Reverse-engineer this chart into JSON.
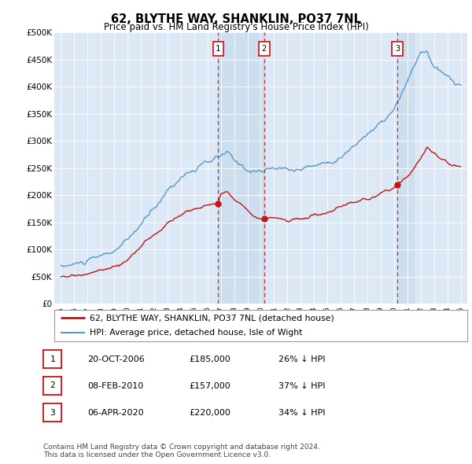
{
  "title": "62, BLYTHE WAY, SHANKLIN, PO37 7NL",
  "subtitle": "Price paid vs. HM Land Registry's House Price Index (HPI)",
  "ylabel_ticks": [
    "£0",
    "£50K",
    "£100K",
    "£150K",
    "£200K",
    "£250K",
    "£300K",
    "£350K",
    "£400K",
    "£450K",
    "£500K"
  ],
  "ytick_values": [
    0,
    50000,
    100000,
    150000,
    200000,
    250000,
    300000,
    350000,
    400000,
    450000,
    500000
  ],
  "xlim": [
    1994.5,
    2025.5
  ],
  "ylim": [
    0,
    500000
  ],
  "plot_bg_color": "#dce8f5",
  "hpi_color": "#5599cc",
  "price_color": "#cc1111",
  "vline_color": "#cc1111",
  "shade_color": "#ccddef",
  "transactions": [
    {
      "label": "1",
      "date": 2006.8,
      "price": 185000,
      "text": "20-OCT-2006",
      "amount": "£185,000",
      "hpi": "26% ↓ HPI"
    },
    {
      "label": "2",
      "date": 2010.25,
      "price": 157000,
      "text": "08-FEB-2010",
      "amount": "£157,000",
      "hpi": "37% ↓ HPI"
    },
    {
      "label": "3",
      "date": 2020.25,
      "price": 220000,
      "text": "06-APR-2020",
      "amount": "£220,000",
      "hpi": "34% ↓ HPI"
    }
  ],
  "legend_line1": "62, BLYTHE WAY, SHANKLIN, PO37 7NL (detached house)",
  "legend_line2": "HPI: Average price, detached house, Isle of Wight",
  "footnote": "Contains HM Land Registry data © Crown copyright and database right 2024.\nThis data is licensed under the Open Government Licence v3.0."
}
